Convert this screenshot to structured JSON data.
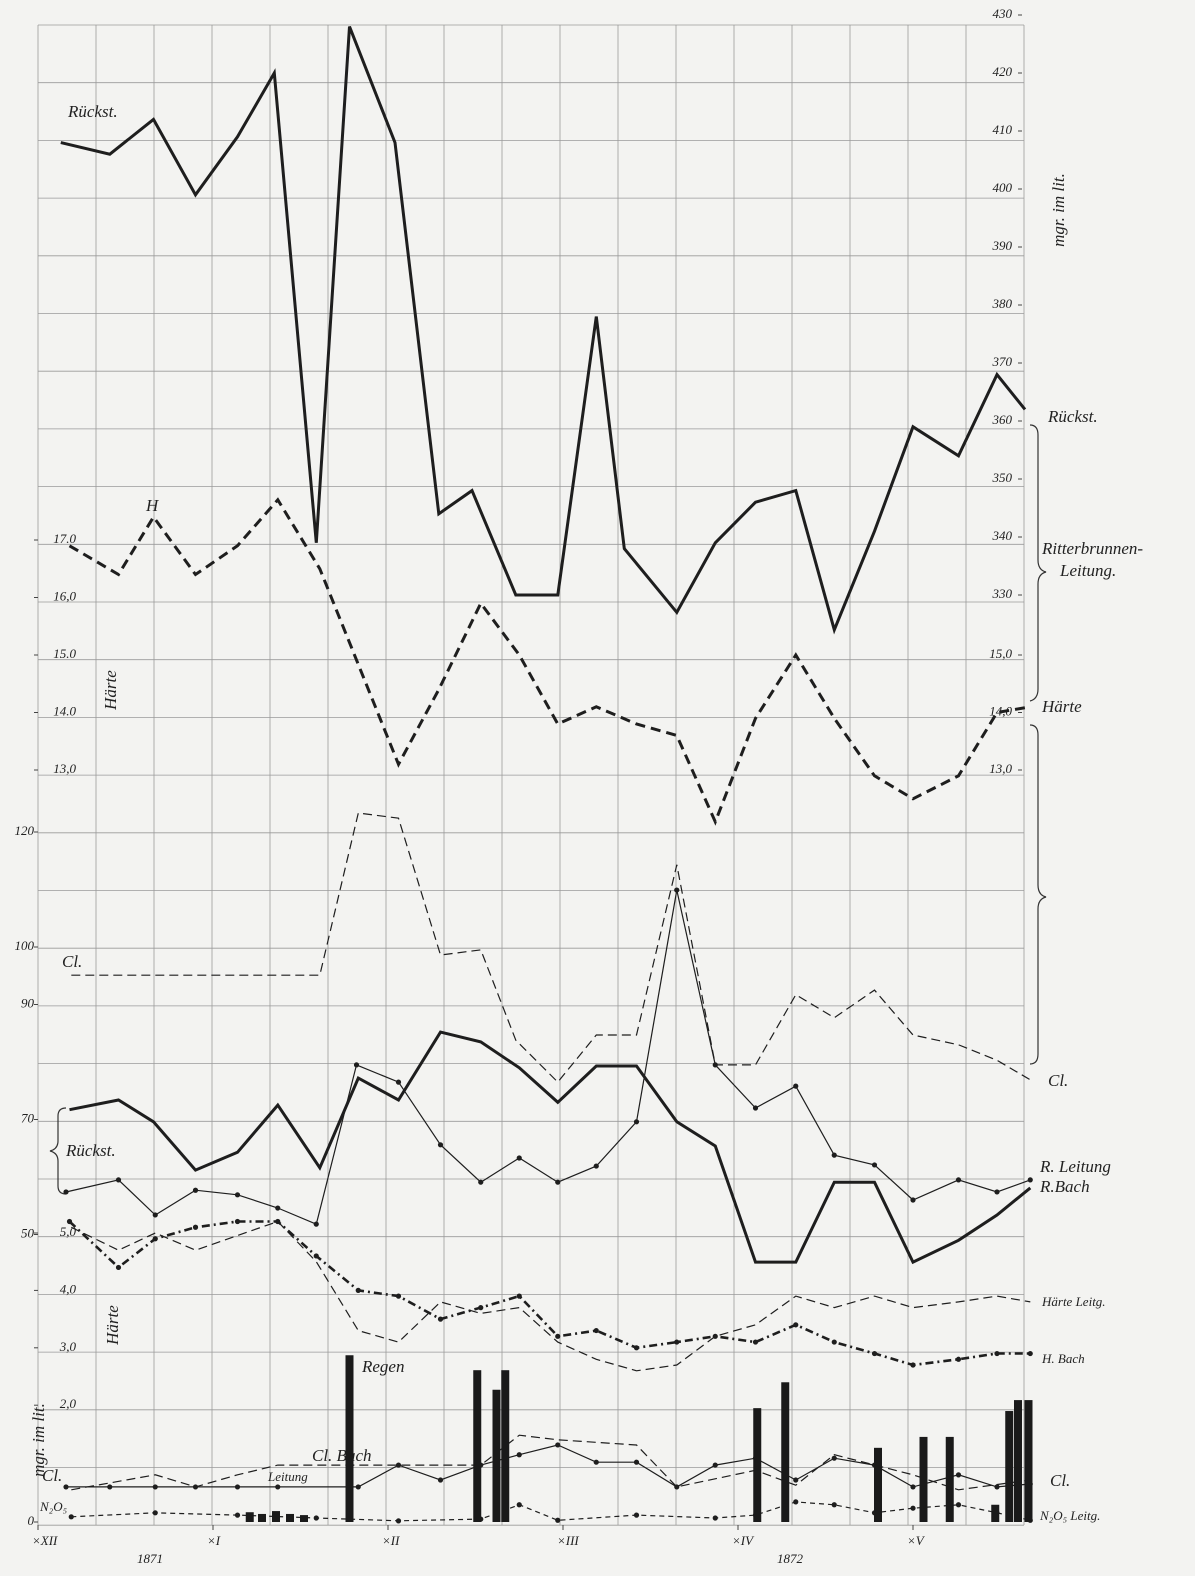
{
  "chart_data": [
    {
      "type": "line",
      "ylim": [
        330,
        430
      ],
      "yticks": [
        330,
        340,
        350,
        360,
        370,
        380,
        390,
        400,
        410,
        420,
        430
      ],
      "yaxis_side": "right",
      "y_label": "mgr. im lit.",
      "xlim": [
        0,
        5.6
      ],
      "grid": true,
      "annotations": [
        "Rückst.",
        "Ritterbrunnen-",
        "Leitung."
      ],
      "series": [
        {
          "name": "Rückst.",
          "line_style": "thick",
          "x": [
            0.13,
            0.41,
            0.66,
            0.9,
            1.14,
            1.35,
            1.59,
            1.78,
            2.04,
            2.29,
            2.48,
            2.73,
            2.97,
            3.19,
            3.35,
            3.65,
            3.87,
            4.1,
            4.33,
            4.55,
            4.78,
            5.0,
            5.26,
            5.48,
            5.64
          ],
          "values": [
            408,
            406,
            412,
            399,
            409,
            420,
            339,
            428,
            408,
            344,
            348,
            330,
            330,
            378,
            338,
            327,
            339,
            346,
            348,
            324,
            341,
            359,
            354,
            368,
            362
          ]
        }
      ]
    },
    {
      "type": "line",
      "ylim": [
        13,
        17
      ],
      "yticks": [
        {
          "value": 13,
          "label": "13,0"
        },
        {
          "value": 14,
          "label": "14.0"
        },
        {
          "value": 15,
          "label": "15.0"
        },
        {
          "value": 16,
          "label": "16,0"
        },
        {
          "value": 17,
          "label": "17.0"
        }
      ],
      "yaxis_side": "left",
      "y2lim": [
        13,
        17
      ],
      "y2ticks": [
        {
          "value": 13,
          "label": "13,0"
        },
        {
          "value": 14,
          "label": "14,0"
        },
        {
          "value": 15,
          "label": "15,0"
        }
      ],
      "y_label": "Härte",
      "xlim": [
        0,
        5.6
      ],
      "annotations": [
        "H"
      ],
      "series": [
        {
          "name": "Härte",
          "line_style": "thick-dashed",
          "axis": "y2",
          "x": [
            0.18,
            0.46,
            0.66,
            0.9,
            1.14,
            1.37,
            1.61,
            2.06,
            2.29,
            2.53,
            2.75,
            2.97,
            3.19,
            3.42,
            3.65,
            3.87,
            4.1,
            4.33,
            4.55,
            4.78,
            5.0,
            5.26,
            5.48,
            5.67
          ],
          "values": [
            16.9,
            16.4,
            17.4,
            16.4,
            16.9,
            17.7,
            16.5,
            13.1,
            14.4,
            15.9,
            15.0,
            13.8,
            14.1,
            13.8,
            13.6,
            12.1,
            13.9,
            15.0,
            13.9,
            12.9,
            12.5,
            12.9,
            14.0,
            14.1
          ]
        }
      ]
    },
    {
      "type": "line",
      "ylim": [
        0,
        120
      ],
      "yticks": [
        0,
        50,
        70,
        90,
        100,
        120
      ],
      "yaxis_side": "left",
      "y_label": "mgr. im lit.",
      "xlim": [
        0,
        5.6
      ],
      "annotations": [
        "Cl.",
        "Rückst.",
        "Cl.",
        "N₂O₅",
        "Cl."
      ],
      "series": [
        {
          "name": "Cl.",
          "line_style": "dashed",
          "x": [
            0.19,
            1.61,
            1.83,
            2.06,
            2.3,
            2.53,
            2.73,
            2.97,
            3.19,
            3.42,
            3.65,
            3.87,
            4.1,
            4.33,
            4.55,
            4.78,
            5.0,
            5.26,
            5.48,
            5.67
          ],
          "values": [
            95.1,
            95.1,
            123.3,
            122.4,
            98.6,
            99.5,
            83.8,
            76.5,
            84.7,
            84.7,
            114.3,
            79.5,
            79.5,
            91.7,
            87.7,
            92.5,
            84.7,
            83.0,
            80.3,
            76.9
          ]
        },
        {
          "name": "R.Bach",
          "line_style": "thick",
          "x": [
            0.18,
            0.46,
            0.66,
            0.9,
            1.14,
            1.37,
            1.61,
            1.83,
            2.06,
            2.3,
            2.53,
            2.75,
            2.97,
            3.19,
            3.42,
            3.65,
            3.87,
            4.1,
            4.33,
            4.55,
            4.78,
            5.0,
            5.26,
            5.48,
            5.67
          ],
          "values": [
            71.7,
            73.4,
            69.6,
            61.2,
            64.3,
            72.5,
            61.6,
            77.2,
            73.4,
            85.2,
            83.5,
            79.0,
            73.0,
            79.3,
            79.3,
            69.6,
            65.4,
            45.2,
            45.2,
            59.1,
            59.1,
            45.2,
            49.0,
            53.4,
            58.1
          ]
        },
        {
          "name": "R. Leitung",
          "line_style": "thin-dots",
          "x": [
            0.16,
            0.46,
            0.67,
            0.9,
            1.14,
            1.37,
            1.59,
            1.82,
            2.06,
            2.3,
            2.53,
            2.75,
            2.97,
            3.19,
            3.42,
            3.65,
            3.87,
            4.1,
            4.33,
            4.55,
            4.78,
            5.0,
            5.26,
            5.48,
            5.67
          ],
          "values": [
            57.4,
            59.5,
            53.4,
            57.7,
            56.9,
            54.6,
            51.8,
            79.5,
            76.5,
            65.6,
            59.1,
            63.3,
            59.1,
            61.9,
            69.6,
            109.9,
            79.5,
            72.0,
            75.8,
            63.8,
            62.1,
            56.0,
            59.5,
            57.4,
            59.5
          ]
        },
        {
          "name": "Cl. Bach",
          "line_style": "thin-dots",
          "x": [
            0.16,
            0.41,
            0.67,
            0.9,
            1.14,
            1.37,
            1.83,
            2.06,
            2.3,
            2.53,
            2.75,
            2.97,
            3.19,
            3.42,
            3.65,
            3.87,
            4.1,
            4.33,
            4.55,
            4.78,
            5.0,
            5.26,
            5.48,
            5.67
          ],
          "values": [
            6.1,
            6.1,
            6.1,
            6.1,
            6.1,
            6.1,
            6.1,
            9.9,
            7.3,
            9.9,
            11.7,
            13.4,
            10.4,
            10.4,
            6.1,
            9.9,
            11.1,
            7.3,
            11.1,
            9.9,
            6.1,
            8.2,
            6.1,
            6.6
          ]
        },
        {
          "name": "Leitung",
          "line_style": "dashed",
          "x": [
            0.19,
            0.67,
            0.9,
            1.14,
            1.37,
            1.83,
            2.06,
            2.53,
            2.75,
            2.97,
            3.42,
            3.65,
            4.1,
            4.33,
            4.55,
            5.0,
            5.26,
            5.67
          ],
          "values": [
            5.6,
            8.2,
            6.1,
            8.2,
            9.9,
            9.9,
            9.9,
            9.9,
            15.1,
            14.3,
            13.4,
            6.1,
            9.0,
            6.4,
            11.7,
            8.2,
            5.6,
            7.3
          ]
        },
        {
          "name": "N₂O₅ Leitg.",
          "line_style": "dash-dots",
          "x": [
            0.19,
            0.67,
            1.14,
            1.59,
            2.06,
            2.53,
            2.75,
            2.97,
            3.42,
            3.87,
            4.1,
            4.33,
            4.55,
            4.78,
            5.0,
            5.26,
            5.48,
            5.67
          ],
          "values": [
            0.9,
            1.6,
            1.2,
            0.7,
            0.2,
            0.5,
            3.0,
            0.3,
            1.2,
            0.7,
            1.2,
            3.5,
            3.0,
            1.6,
            2.4,
            3.0,
            1.6,
            0.3
          ]
        },
        {
          "name": "Regen",
          "line_style": "bar",
          "x": [
            1.21,
            1.28,
            1.36,
            1.44,
            1.52,
            1.78,
            2.51,
            2.62,
            2.67,
            4.11,
            4.27,
            4.8,
            5.06,
            5.21,
            5.47,
            5.55,
            5.6,
            5.66
          ],
          "values": [
            1.7,
            1.4,
            1.9,
            1.4,
            1.2,
            29.0,
            26.4,
            23.0,
            26.4,
            19.8,
            24.3,
            12.9,
            14.8,
            14.8,
            3.0,
            19.3,
            21.2,
            21.2
          ]
        }
      ]
    },
    {
      "type": "line",
      "ylim": [
        0,
        5
      ],
      "yticks": [
        {
          "value": 2,
          "label": "2,0"
        },
        {
          "value": 3,
          "label": "3,0"
        },
        {
          "value": 4,
          "label": "4,0"
        },
        {
          "value": 5,
          "label": "5,0"
        }
      ],
      "yaxis_side": "left",
      "y_label": "Härte",
      "xlim": [
        0,
        5.6
      ],
      "xticks": [
        {
          "value": 0,
          "label": "×XII"
        },
        {
          "value": 1,
          "label": "×I"
        },
        {
          "value": 2,
          "label": "×II"
        },
        {
          "value": 3,
          "label": "×III"
        },
        {
          "value": 4,
          "label": "×IV"
        },
        {
          "value": 5,
          "label": "×V"
        }
      ],
      "x_group_labels": [
        "1871",
        "1872"
      ],
      "series": [
        {
          "name": "Härte Leitg.",
          "line_style": "dashed",
          "x": [
            0.19,
            0.46,
            0.67,
            0.9,
            1.37,
            1.59,
            1.83,
            2.06,
            2.3,
            2.53,
            2.75,
            2.97,
            3.19,
            3.42,
            3.65,
            3.87,
            4.1,
            4.33,
            4.55,
            4.78,
            5.0,
            5.26,
            5.48,
            5.67
          ],
          "values": [
            5.1,
            4.7,
            5.0,
            4.7,
            5.2,
            4.5,
            3.3,
            3.1,
            3.8,
            3.6,
            3.7,
            3.1,
            2.8,
            2.6,
            2.7,
            3.2,
            3.4,
            3.9,
            3.7,
            3.9,
            3.7,
            3.8,
            3.9,
            3.8
          ]
        },
        {
          "name": "H. Bach",
          "line_style": "thick-dash-dot",
          "x": [
            0.18,
            0.46,
            0.67,
            0.9,
            1.14,
            1.37,
            1.59,
            1.83,
            2.06,
            2.3,
            2.53,
            2.75,
            2.97,
            3.19,
            3.42,
            3.65,
            3.87,
            4.1,
            4.33,
            4.55,
            4.78,
            5.0,
            5.26,
            5.48,
            5.67
          ],
          "values": [
            5.2,
            4.4,
            4.9,
            5.1,
            5.2,
            5.2,
            4.6,
            4.0,
            3.9,
            3.5,
            3.7,
            3.9,
            3.2,
            3.3,
            3.0,
            3.1,
            3.2,
            3.1,
            3.4,
            3.1,
            2.9,
            2.7,
            2.8,
            2.9,
            2.9
          ]
        }
      ]
    }
  ]
}
